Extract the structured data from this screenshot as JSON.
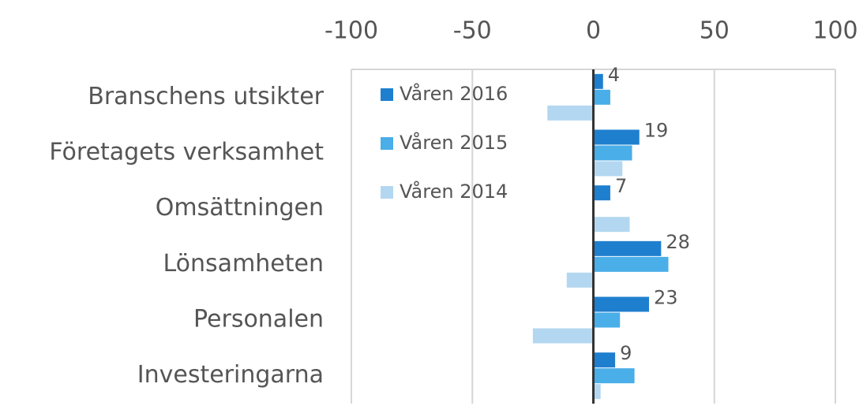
{
  "chart_data": {
    "type": "hbar",
    "categories": [
      "Branschens utsikter",
      "Företagets verksamhet",
      "Omsättningen",
      "Lönsamheten",
      "Personalen",
      "Investeringarna"
    ],
    "series": [
      {
        "name": "Våren 2016",
        "color": "#1f7fcf",
        "values": [
          4,
          19,
          7,
          28,
          23,
          9
        ]
      },
      {
        "name": "Våren 2015",
        "color": "#4aaee8",
        "values": [
          7,
          16,
          0,
          31,
          11,
          17
        ]
      },
      {
        "name": "Våren 2014",
        "color": "#b3d7f0",
        "values": [
          -19,
          12,
          15,
          -11,
          -25,
          3
        ]
      }
    ],
    "xlim": [
      -100,
      100
    ],
    "xticks": [
      -100,
      -50,
      0,
      50,
      100
    ],
    "grid": true,
    "legend": "upper left",
    "data_labels_series": 0
  }
}
